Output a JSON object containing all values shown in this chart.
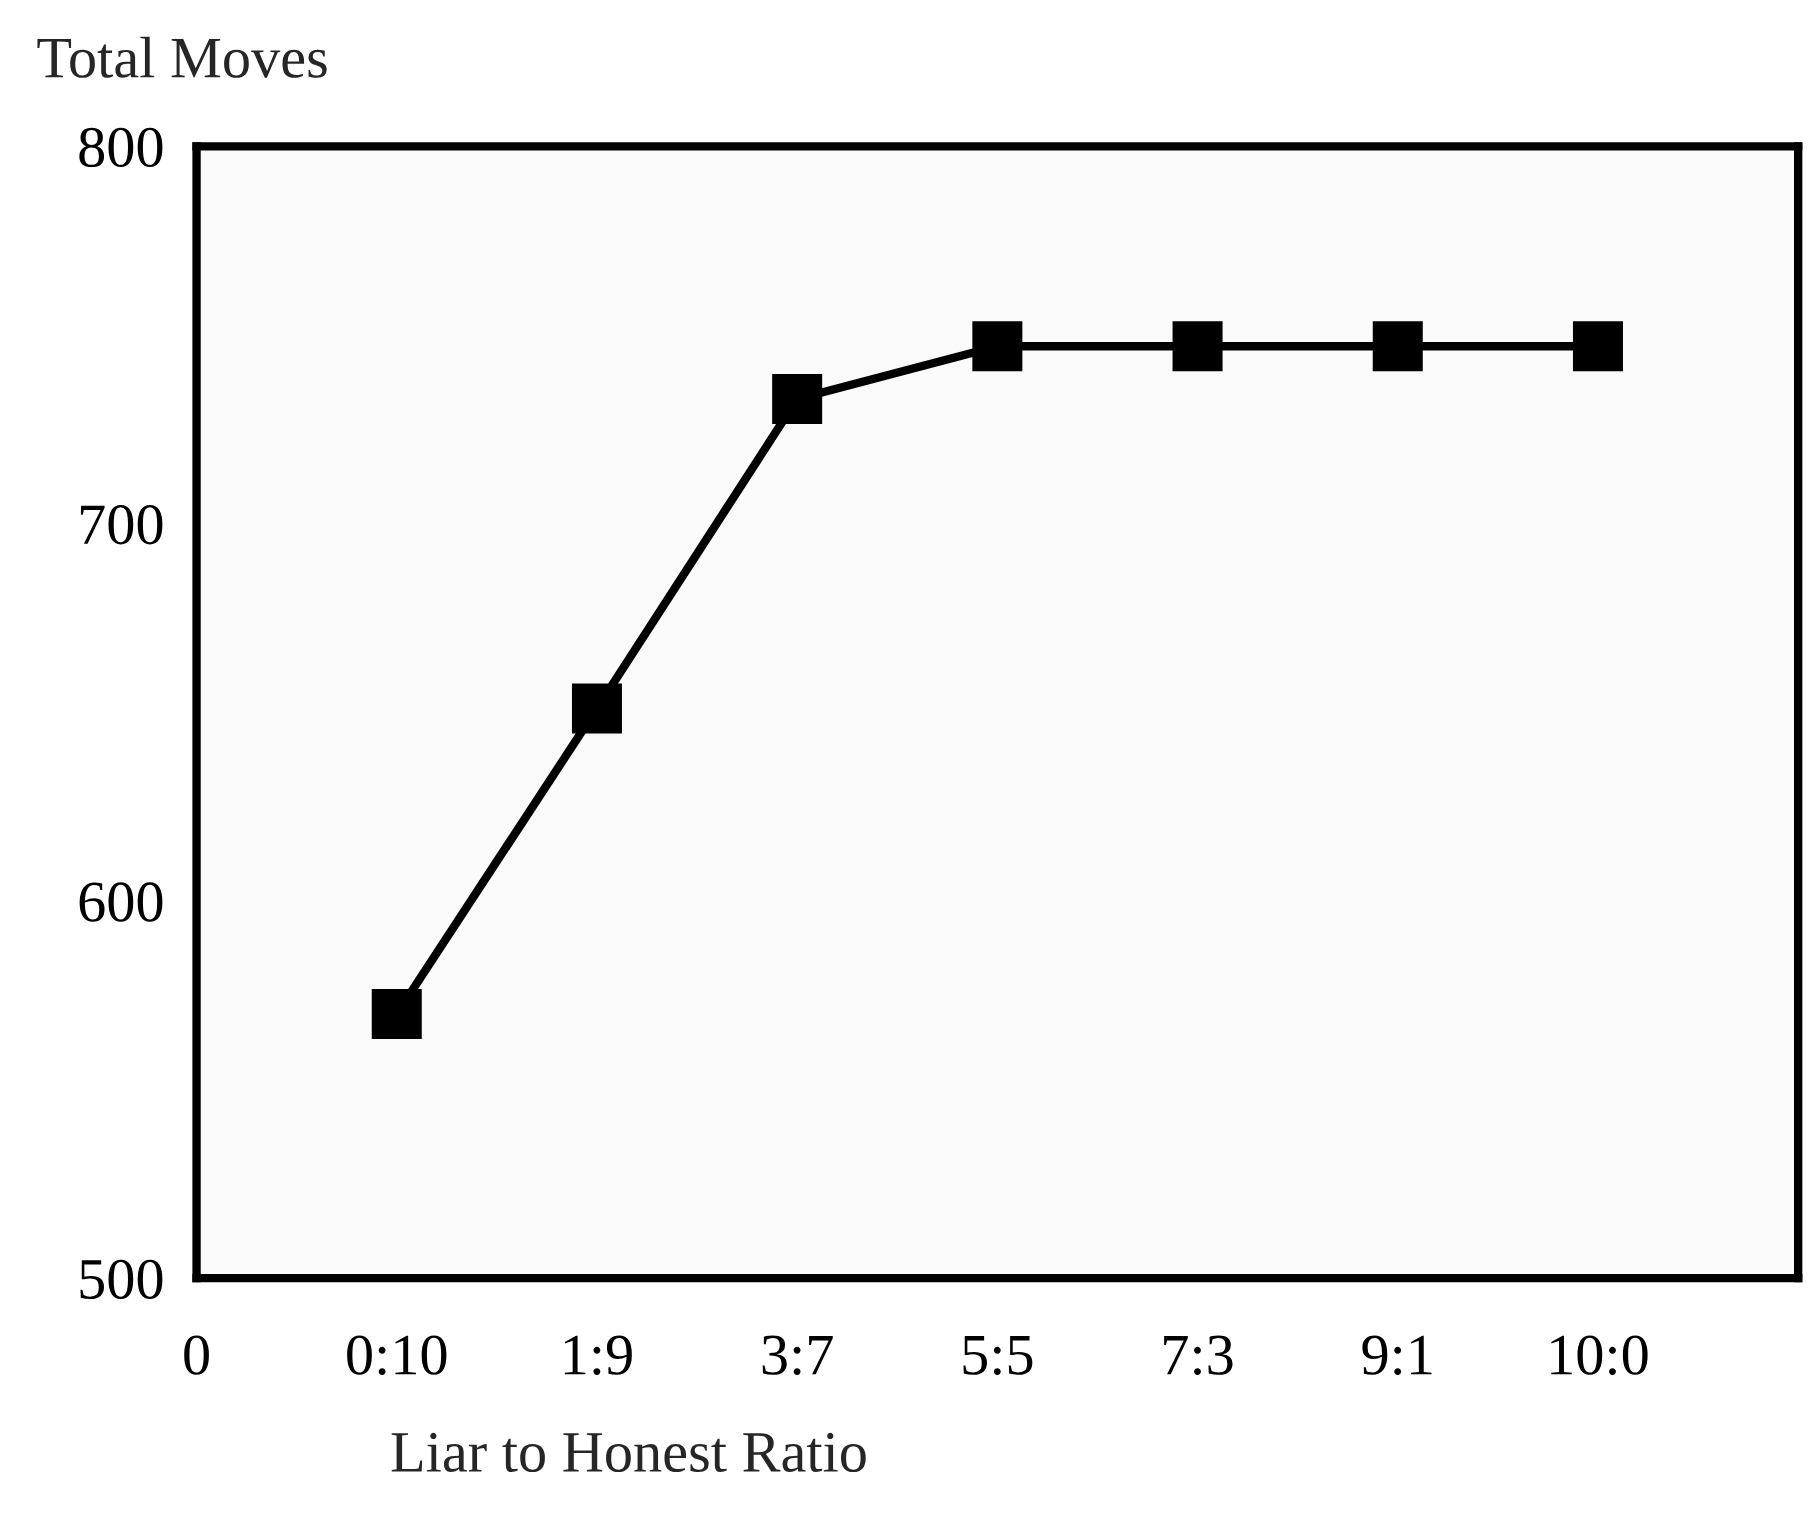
{
  "chart_data": {
    "type": "line",
    "ylabel": "Total Moves",
    "xlabel": "Liar to Honest Ratio",
    "categories": [
      "0",
      "0:10",
      "1:9",
      "3:7",
      "5:5",
      "7:3",
      "9:1",
      "10:0",
      null
    ],
    "series": [
      {
        "color": "#000000",
        "values": [
          null,
          570,
          651,
          733,
          747,
          747,
          747,
          747,
          null
        ]
      }
    ],
    "ylim": [
      500,
      800
    ],
    "yticks": [
      500,
      600,
      700,
      800
    ],
    "marker": "square",
    "line_style": "solid",
    "grid": false,
    "legend": false
  }
}
